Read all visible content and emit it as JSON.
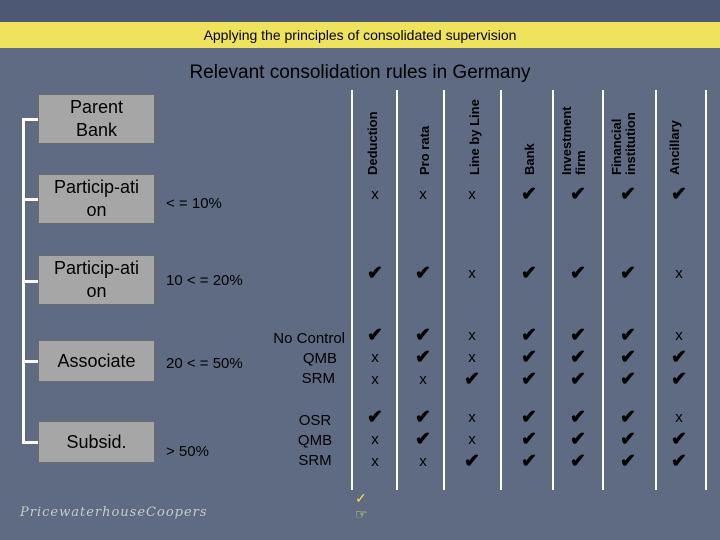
{
  "title": "Applying the principles of consolidated supervision",
  "subtitle": "Relevant consolidation rules in Germany",
  "columns": [
    "Deduction",
    "Pro rata",
    "Line by Line",
    "Bank",
    "Investment firm",
    "Financial institution",
    "Ancillary"
  ],
  "parent": "Parent Bank",
  "rows": [
    {
      "label": "Particip-ation",
      "range": "< = 10%",
      "control": [],
      "cells": [
        [
          "x"
        ],
        [
          "x"
        ],
        [
          "x"
        ],
        [
          "✔"
        ],
        [
          "✔"
        ],
        [
          "✔"
        ],
        [
          "✔"
        ]
      ]
    },
    {
      "label": "Particip-ation",
      "range": "10 < = 20%",
      "control": [],
      "cells": [
        [
          "✔"
        ],
        [
          "✔"
        ],
        [
          "x"
        ],
        [
          "✔"
        ],
        [
          "✔"
        ],
        [
          "✔"
        ],
        [
          "x"
        ]
      ]
    },
    {
      "label": "Associate",
      "range": "20 < = 50%",
      "control": [
        "No Control",
        "QMB",
        "SRM"
      ],
      "cells": [
        [
          "✔",
          "x",
          "x"
        ],
        [
          "✔",
          "✔",
          "x"
        ],
        [
          "x",
          "x",
          "✔"
        ],
        [
          "✔",
          "✔",
          "✔"
        ],
        [
          "✔",
          "✔",
          "✔"
        ],
        [
          "✔",
          "✔",
          "✔"
        ],
        [
          "x",
          "✔",
          "✔"
        ]
      ]
    },
    {
      "label": "Subsid.",
      "range": "> 50%",
      "control": [
        "OSR",
        "QMB",
        "SRM"
      ],
      "cells": [
        [
          "✔",
          "x",
          "x"
        ],
        [
          "✔",
          "✔",
          "x"
        ],
        [
          "x",
          "x",
          "✔"
        ],
        [
          "✔",
          "✔",
          "✔"
        ],
        [
          "✔",
          "✔",
          "✔"
        ],
        [
          "✔",
          "✔",
          "✔"
        ],
        [
          "x",
          "✔",
          "✔"
        ]
      ]
    }
  ],
  "legend": [
    "✓",
    "☞"
  ],
  "logo": "PricewaterhouseCoopers",
  "colors": {
    "background": "#5f6b82",
    "header": "#4c5874",
    "title_strip": "#efe25d",
    "box": "#a6a6a6"
  }
}
